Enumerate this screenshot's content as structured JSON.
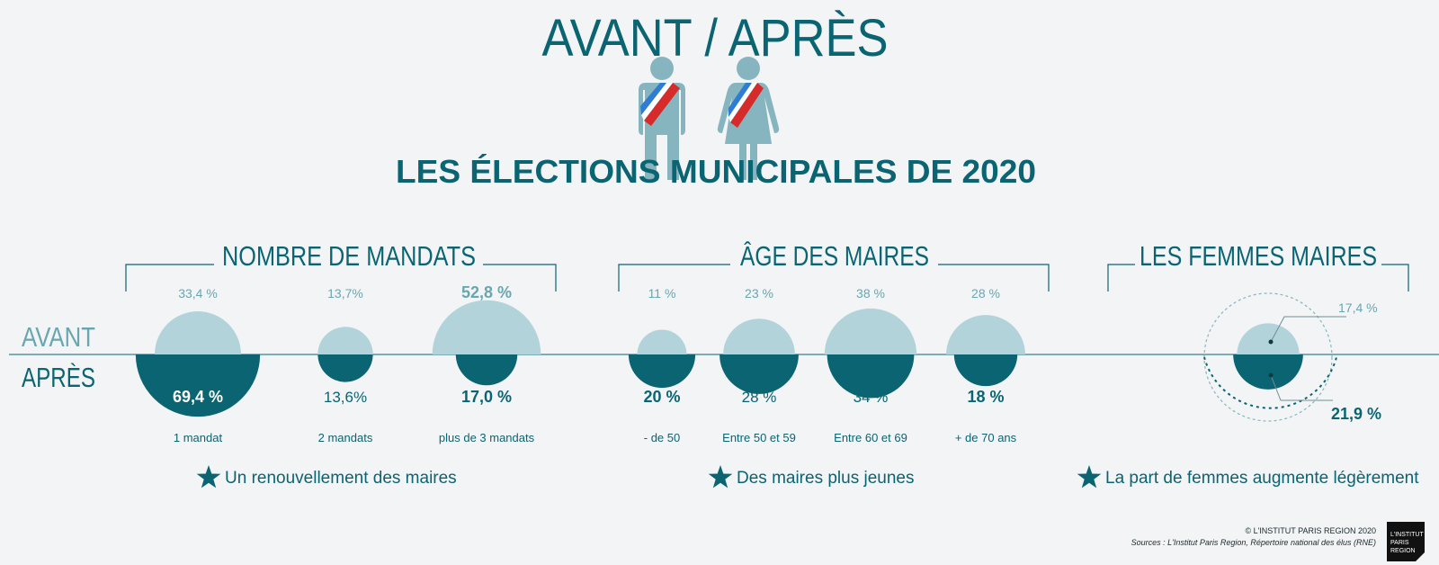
{
  "header": {
    "title": "AVANT / APRÈS",
    "subtitle": "LES ÉLECTIONS MUNICIPALES DE 2020"
  },
  "rows": {
    "before": "AVANT",
    "after": "APRÈS"
  },
  "colors": {
    "before": "#b2d3d9",
    "after": "#0b6472",
    "text_light": "#6aa6b0",
    "text_dark": "#0b6472",
    "figure": "#86b5c0"
  },
  "icons": [
    "male-mayor-icon",
    "female-mayor-icon",
    "star-icon"
  ],
  "chart_data": [
    {
      "type": "bubble",
      "title": "NOMBRE DE MANDATS",
      "categories": [
        "1 mandat",
        "2 mandats",
        "plus de 3 mandats"
      ],
      "series": [
        {
          "name": "AVANT",
          "values": [
            33.4,
            13.7,
            52.8
          ],
          "labels": [
            "33,4 %",
            "13,7%",
            "52,8 %"
          ]
        },
        {
          "name": "APRÈS",
          "values": [
            69.4,
            13.6,
            17.0
          ],
          "labels": [
            "69,4 %",
            "13,6%",
            "17,0 %"
          ]
        }
      ],
      "conclusion": "Un renouvellement des maires"
    },
    {
      "type": "bubble",
      "title": "ÂGE DES MAIRES",
      "categories": [
        "- de 50",
        "Entre 50 et 59",
        "Entre 60 et 69",
        "+ de 70 ans"
      ],
      "series": [
        {
          "name": "AVANT",
          "values": [
            11,
            23,
            38,
            28
          ],
          "labels": [
            "11 %",
            "23 %",
            "38 %",
            "28 %"
          ]
        },
        {
          "name": "APRÈS",
          "values": [
            20,
            28,
            34,
            18
          ],
          "labels": [
            "20 %",
            "28 %",
            "34 %",
            "18 %"
          ]
        }
      ],
      "conclusion": "Des maires plus jeunes"
    },
    {
      "type": "bubble",
      "title": "LES FEMMES MAIRES",
      "categories": [
        ""
      ],
      "series": [
        {
          "name": "AVANT",
          "values": [
            17.4
          ],
          "labels": [
            "17,4 %"
          ]
        },
        {
          "name": "APRÈS",
          "values": [
            21.9
          ],
          "labels": [
            "21,9 %"
          ]
        }
      ],
      "conclusion": "La part de femmes augmente légèrement"
    }
  ],
  "footer": {
    "copyright": "© L'INSTITUT PARIS REGION 2020",
    "sources": "Sources : L'Institut Paris Region, Répertoire national des élus (RNE)",
    "logo_lines": [
      "L'INSTITUT",
      "PARIS",
      "REGION"
    ]
  }
}
